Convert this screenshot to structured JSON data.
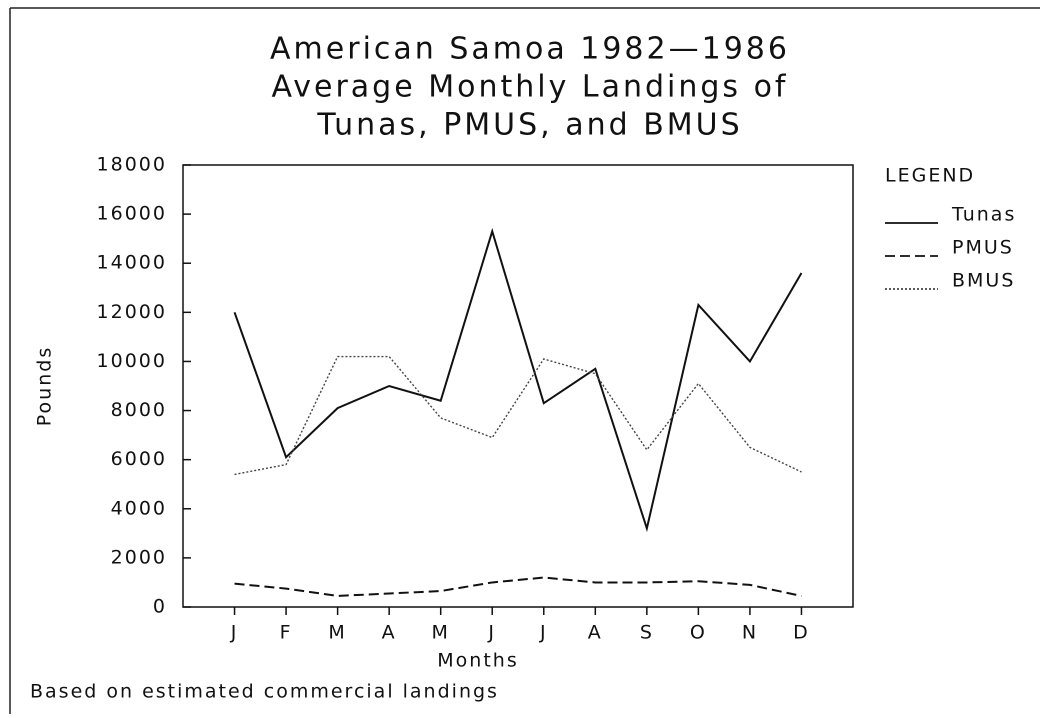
{
  "chart_data": {
    "type": "line",
    "title": [
      "American Samoa 1982—1986",
      "Average Monthly Landings of",
      "Tunas, PMUS, and BMUS"
    ],
    "x_label": "Months",
    "y_label": "Pounds",
    "legend_title": "LEGEND",
    "footnote": "Based on estimated commercial landings",
    "categories": [
      "J",
      "F",
      "M",
      "A",
      "M",
      "J",
      "J",
      "A",
      "S",
      "O",
      "N",
      "D"
    ],
    "series": [
      {
        "name": "Tunas",
        "color": "#111111",
        "dash": "solid",
        "values": [
          12000,
          6100,
          8100,
          9000,
          8400,
          15300,
          8300,
          9700,
          3200,
          12300,
          10000,
          13600
        ]
      },
      {
        "name": "PMUS",
        "color": "#111111",
        "dash": "dashed",
        "values": [
          950,
          750,
          450,
          550,
          650,
          1000,
          1200,
          1000,
          1000,
          1050,
          900,
          450
        ]
      },
      {
        "name": "BMUS",
        "color": "#444444",
        "dash": "dotted",
        "values": [
          5400,
          5800,
          10200,
          10200,
          7700,
          6900,
          10100,
          9500,
          6400,
          9100,
          6500,
          5500
        ]
      }
    ],
    "ylim": [
      0,
      18000
    ],
    "yticks": [
      0,
      2000,
      4000,
      6000,
      8000,
      10000,
      12000,
      14000,
      16000,
      18000
    ],
    "legend": "right"
  }
}
